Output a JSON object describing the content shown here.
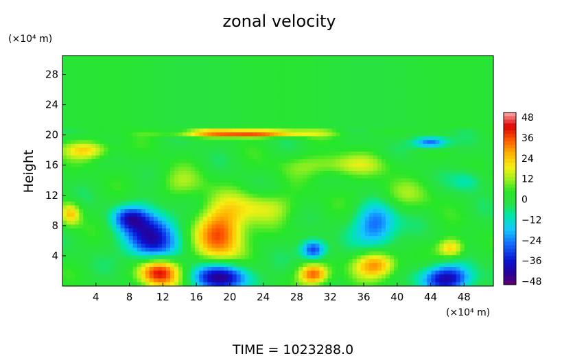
{
  "chart_data": {
    "type": "heatmap",
    "title": "zonal velocity",
    "xlabel": "",
    "ylabel": "Height",
    "x_unit": "(×10⁴ m)",
    "y_unit": "(×10⁴ m)",
    "x_range": [
      0,
      51.5
    ],
    "y_range": [
      0,
      30.5
    ],
    "x_ticks": [
      "4",
      "8",
      "12",
      "16",
      "20",
      "24",
      "28",
      "32",
      "36",
      "40",
      "44",
      "48"
    ],
    "y_ticks": [
      "4",
      "8",
      "12",
      "16",
      "20",
      "24",
      "28"
    ],
    "colorbar": {
      "range": [
        -48,
        48
      ],
      "ticks": [
        "48",
        "36",
        "24",
        "12",
        "0",
        "−12",
        "−24",
        "−36",
        "−48"
      ]
    },
    "footer": "TIME  =  1023288.0",
    "features": [
      {
        "x": 11.5,
        "y": 1.8,
        "value": 44,
        "rx": 2.5,
        "ry": 2.0
      },
      {
        "x": 10.5,
        "y": 6.5,
        "value": -40,
        "rx": 3.0,
        "ry": 3.5
      },
      {
        "x": 19.0,
        "y": 7.0,
        "value": 34,
        "rx": 3.0,
        "ry": 3.8
      },
      {
        "x": 19.0,
        "y": 1.2,
        "value": -42,
        "rx": 3.5,
        "ry": 1.8
      },
      {
        "x": 30.0,
        "y": 1.5,
        "value": 34,
        "rx": 1.8,
        "ry": 1.4
      },
      {
        "x": 30.0,
        "y": 4.8,
        "value": -34,
        "rx": 1.5,
        "ry": 1.3
      },
      {
        "x": 37.5,
        "y": 2.8,
        "value": 30,
        "rx": 2.5,
        "ry": 1.8
      },
      {
        "x": 37.5,
        "y": 8.0,
        "value": -28,
        "rx": 2.5,
        "ry": 3.0
      },
      {
        "x": 46.0,
        "y": 1.0,
        "value": -40,
        "rx": 3.0,
        "ry": 1.8
      },
      {
        "x": 46.5,
        "y": 5.0,
        "value": 24,
        "rx": 1.6,
        "ry": 1.3
      },
      {
        "x": 8.0,
        "y": 9.0,
        "value": -24,
        "rx": 2.0,
        "ry": 1.5
      },
      {
        "x": 24.0,
        "y": 10.5,
        "value": 14,
        "rx": 4.0,
        "ry": 2.0
      },
      {
        "x": 3.0,
        "y": 18.0,
        "value": 20,
        "rx": 3.0,
        "ry": 1.2
      },
      {
        "x": 22.0,
        "y": 20.2,
        "value": 36,
        "rx": 8.0,
        "ry": 0.5
      },
      {
        "x": 44.0,
        "y": 19.0,
        "value": -30,
        "rx": 2.0,
        "ry": 0.8
      },
      {
        "x": 33.0,
        "y": 16.0,
        "value": 14,
        "rx": 6.0,
        "ry": 1.5
      },
      {
        "x": 48.5,
        "y": 14.0,
        "value": -12,
        "rx": 2.0,
        "ry": 1.5
      },
      {
        "x": 1.0,
        "y": 9.5,
        "value": 22,
        "rx": 1.2,
        "ry": 1.5
      },
      {
        "x": 14.0,
        "y": 13.5,
        "value": 10,
        "rx": 3.0,
        "ry": 2.0
      },
      {
        "x": 40.0,
        "y": 12.0,
        "value": 8,
        "rx": 5.0,
        "ry": 2.0
      }
    ]
  }
}
